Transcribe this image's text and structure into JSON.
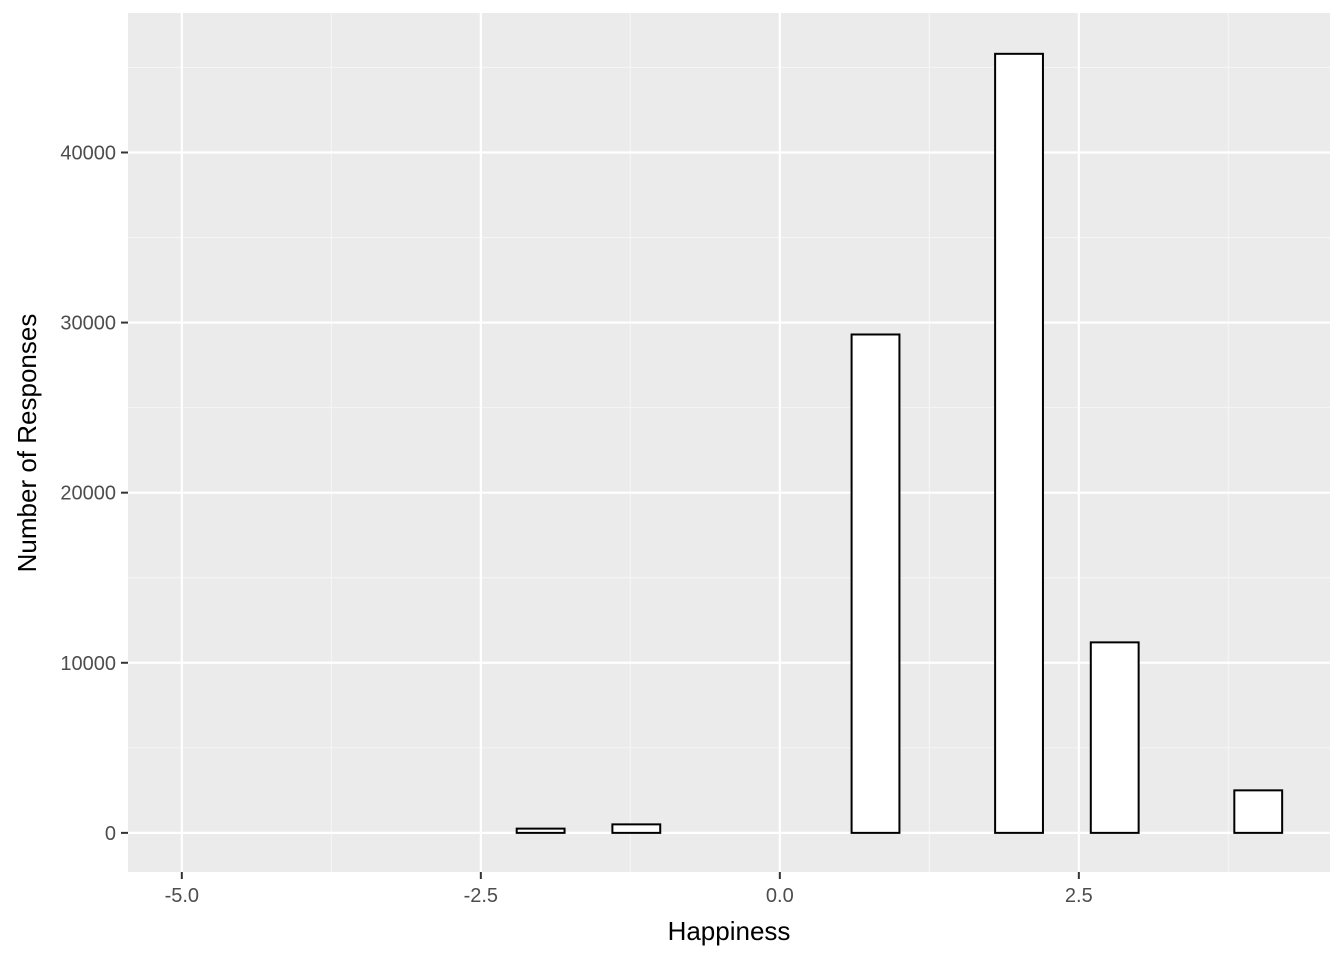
{
  "chart_data": {
    "type": "bar",
    "title": "",
    "xlabel": "Happiness",
    "ylabel": "Number of Responses",
    "x_ticks": [
      "-5.0",
      "-2.5",
      "0.0",
      "2.5"
    ],
    "x_tick_values": [
      -5.0,
      -2.5,
      0.0,
      2.5
    ],
    "y_ticks": [
      "0",
      "10000",
      "20000",
      "30000",
      "40000"
    ],
    "y_tick_values": [
      0,
      10000,
      20000,
      30000,
      40000
    ],
    "xlim": [
      -5.45,
      4.6
    ],
    "ylim": [
      -2300,
      48200
    ],
    "bin_width": 0.4,
    "bins": [
      {
        "x": -4.8,
        "count": 0
      },
      {
        "x": -4.4,
        "count": 0
      },
      {
        "x": -4.0,
        "count": 0
      },
      {
        "x": -3.6,
        "count": 0
      },
      {
        "x": -3.2,
        "count": 0
      },
      {
        "x": -2.8,
        "count": 0
      },
      {
        "x": -2.4,
        "count": 0
      },
      {
        "x": -2.0,
        "count": 250
      },
      {
        "x": -1.2,
        "count": 500
      },
      {
        "x": -0.8,
        "count": 0
      },
      {
        "x": -0.4,
        "count": 0
      },
      {
        "x": 0.0,
        "count": 0
      },
      {
        "x": 0.4,
        "count": 0
      },
      {
        "x": 0.8,
        "count": 29300
      },
      {
        "x": 1.2,
        "count": 0
      },
      {
        "x": 1.6,
        "count": 0
      },
      {
        "x": 2.0,
        "count": 45800
      },
      {
        "x": 2.8,
        "count": 11200
      },
      {
        "x": 3.2,
        "count": 0
      },
      {
        "x": 3.6,
        "count": 0
      },
      {
        "x": 4.0,
        "count": 2500
      }
    ],
    "grid": true,
    "legend": "none",
    "colors": {
      "panel_background": "#ebebeb",
      "grid_major": "#ffffff",
      "grid_minor": "#f5f5f5",
      "bar_fill": "#ffffff",
      "bar_outline": "#000000"
    }
  }
}
